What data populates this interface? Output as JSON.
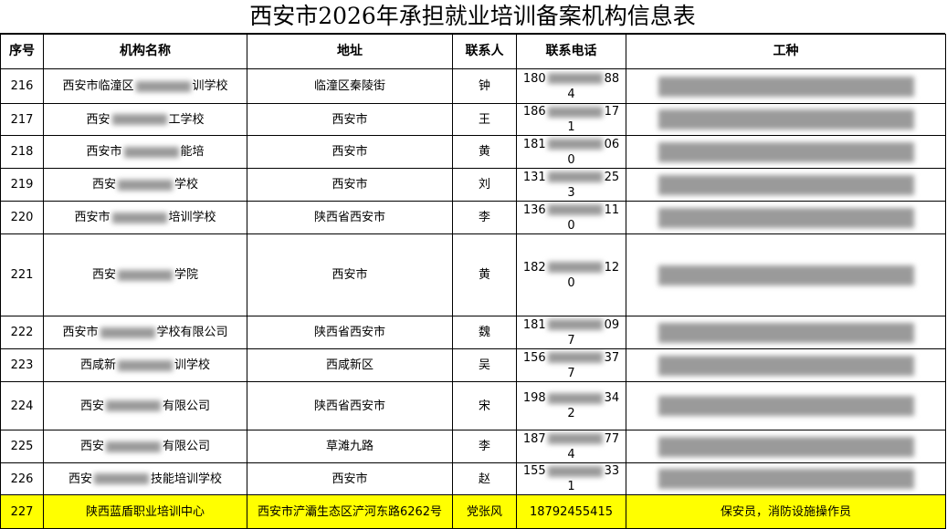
{
  "title": "西安市2026年承担就业培训备案机构信息表",
  "table": {
    "headers": [
      "序号",
      "机构名称",
      "地址",
      "联系人",
      "联系电话",
      "工种"
    ],
    "rows": [
      {
        "cells": [
          [
            "216"
          ],
          [
            "西安市临潼区",
            "训学校"
          ],
          [
            "临潼区秦陵街"
          ],
          [
            "钟"
          ],
          [
            "180",
            "884"
          ],
          []
        ]
      },
      {
        "cells": [
          [
            "217"
          ],
          [
            "西安",
            "工学校"
          ],
          [
            "西安市"
          ],
          [
            "王"
          ],
          [
            "186",
            "171"
          ],
          []
        ]
      },
      {
        "cells": [
          [
            "218"
          ],
          [
            "西安市",
            "能培"
          ],
          [
            "西安市"
          ],
          [
            "黄"
          ],
          [
            "181",
            "060"
          ],
          []
        ]
      },
      {
        "cells": [
          [
            "219"
          ],
          [
            "西安",
            "学校"
          ],
          [
            "西安市"
          ],
          [
            "刘"
          ],
          [
            "131",
            "253"
          ],
          []
        ]
      },
      {
        "cells": [
          [
            "220"
          ],
          [
            "西安市",
            "培训学校"
          ],
          [
            "陕西省西安市"
          ],
          [
            "李"
          ],
          [
            "136",
            "110"
          ],
          []
        ]
      },
      {
        "cells": [
          [
            "221"
          ],
          [
            "西安",
            "学院"
          ],
          [
            "西安市"
          ],
          [
            "黄"
          ],
          [
            "182",
            "120"
          ],
          []
        ]
      },
      {
        "cells": [
          [
            "222"
          ],
          [
            "西安市",
            "学校有限公司"
          ],
          [
            "陕西省西安市"
          ],
          [
            "魏"
          ],
          [
            "181",
            "097"
          ],
          []
        ]
      },
      {
        "cells": [
          [
            "223"
          ],
          [
            "西咸新",
            "训学校"
          ],
          [
            "西咸新区"
          ],
          [
            "吴"
          ],
          [
            "156",
            "377"
          ],
          []
        ]
      },
      {
        "cells": [
          [
            "224"
          ],
          [
            "西安",
            "有限公司"
          ],
          [
            "陕西省西安市"
          ],
          [
            "宋"
          ],
          [
            "198",
            "342"
          ],
          []
        ]
      },
      {
        "cells": [
          [
            "225"
          ],
          [
            "西安",
            "有限公司"
          ],
          [
            "草滩九路"
          ],
          [
            "李"
          ],
          [
            "187",
            "774"
          ],
          []
        ]
      },
      {
        "cells": [
          [
            "226"
          ],
          [
            "西安",
            "技能培训学校"
          ],
          [
            "西安市"
          ],
          [
            "赵"
          ],
          [
            "155",
            "331"
          ],
          []
        ]
      },
      {
        "cells": [
          [
            "227"
          ],
          [
            "陕西蓝盾职业培训中心"
          ],
          [
            "西安市浐灞生态区浐河东路6262号"
          ],
          [
            "党张风"
          ],
          [
            "18792455415"
          ],
          [
            "保安员，消防设施操作员"
          ]
        ],
        "highlight": true
      }
    ]
  }
}
